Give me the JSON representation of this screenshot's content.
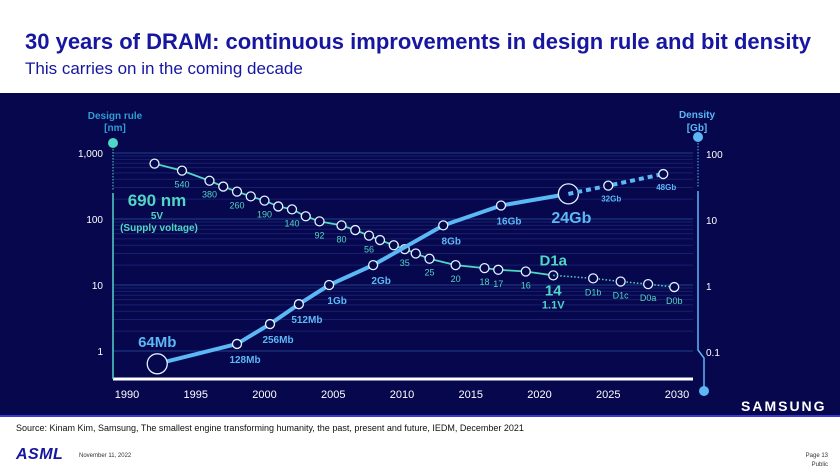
{
  "slide": {
    "title": "30 years of DRAM: continuous improvements in design rule and bit density",
    "subtitle": "This carries on in the coming decade",
    "source": "Source: Kinam Kim, Samsung, The smallest engine transforming humanity, the past, present and future, IEDM, December 2021",
    "logo": "ASML",
    "date": "November 11, 2022",
    "page": "Page 13",
    "classification": "Public",
    "chart_brand": "SAMSUNG"
  },
  "colors": {
    "background": "#07074e",
    "design_rule": "#4fd6c4",
    "density": "#5bb8f5",
    "title": "#1616a0"
  },
  "chart_data": {
    "type": "line",
    "x_ticks": [
      "1990",
      "1995",
      "2000",
      "2005",
      "2010",
      "2015",
      "2020",
      "2025",
      "2030"
    ],
    "xlim": [
      1990,
      2030
    ],
    "grid": true,
    "left_axis": {
      "label_line1": "Design rule",
      "label_line2": "[nm]",
      "scale": "log",
      "ylim": [
        1,
        1000
      ],
      "ticks": [
        "1,000",
        "100",
        "10",
        "1"
      ]
    },
    "right_axis": {
      "label_line1": "Density",
      "label_line2": "[Gb]",
      "scale": "log",
      "ylim": [
        0.1,
        100
      ],
      "ticks": [
        "100",
        "10",
        "1",
        "0.1"
      ]
    },
    "annotations": {
      "first_node": "690 nm",
      "first_voltage": "5V",
      "voltage_caption": "(Supply voltage)",
      "current_node": "D1a",
      "current_voltage": "1.1V"
    },
    "series": [
      {
        "axis": "left",
        "points": [
          {
            "x": 1992,
            "y": 690,
            "label": ""
          },
          {
            "x": 1994,
            "y": 540,
            "label": "540"
          },
          {
            "x": 1996,
            "y": 380,
            "label": "380"
          },
          {
            "x": 1997,
            "y": 310,
            "label": ""
          },
          {
            "x": 1998,
            "y": 260,
            "label": "260"
          },
          {
            "x": 1999,
            "y": 220,
            "label": ""
          },
          {
            "x": 2000,
            "y": 190,
            "label": "190"
          },
          {
            "x": 2001,
            "y": 155,
            "label": ""
          },
          {
            "x": 2002,
            "y": 140,
            "label": "140"
          },
          {
            "x": 2003,
            "y": 110,
            "label": ""
          },
          {
            "x": 2004,
            "y": 92,
            "label": "92"
          },
          {
            "x": 2005.6,
            "y": 80,
            "label": "80"
          },
          {
            "x": 2006.6,
            "y": 68,
            "label": ""
          },
          {
            "x": 2007.6,
            "y": 56,
            "label": "56"
          },
          {
            "x": 2008.4,
            "y": 48,
            "label": ""
          },
          {
            "x": 2009.4,
            "y": 40,
            "label": ""
          },
          {
            "x": 2010.2,
            "y": 35,
            "label": "35"
          },
          {
            "x": 2011,
            "y": 30,
            "label": ""
          },
          {
            "x": 2012,
            "y": 25,
            "label": "25"
          },
          {
            "x": 2013.9,
            "y": 20,
            "label": "20"
          },
          {
            "x": 2016,
            "y": 18,
            "label": "18"
          },
          {
            "x": 2017,
            "y": 17,
            "label": "17"
          },
          {
            "x": 2019,
            "y": 16,
            "label": "16"
          },
          {
            "x": 2021,
            "y": 14,
            "label": "14"
          }
        ]
      },
      {
        "axis": "left",
        "projected": true,
        "points": [
          {
            "x": 2021,
            "y": 14,
            "label": ""
          },
          {
            "x": 2023.9,
            "y": 12.6,
            "label": "D1b"
          },
          {
            "x": 2025.9,
            "y": 11.3,
            "label": "D1c"
          },
          {
            "x": 2027.9,
            "y": 10.3,
            "label": "D0a"
          },
          {
            "x": 2029.8,
            "y": 9.3,
            "label": "D0b"
          }
        ]
      },
      {
        "axis": "right",
        "points": [
          {
            "x": 1992.2,
            "y": 0.064,
            "label": "64Mb"
          },
          {
            "x": 1998,
            "y": 0.128,
            "label": "128Mb"
          },
          {
            "x": 2000.4,
            "y": 0.256,
            "label": "256Mb"
          },
          {
            "x": 2002.5,
            "y": 0.512,
            "label": "512Mb"
          },
          {
            "x": 2004.7,
            "y": 1,
            "label": "1Gb"
          },
          {
            "x": 2007.9,
            "y": 2,
            "label": "2Gb"
          },
          {
            "x": 2013,
            "y": 8,
            "label": "8Gb"
          },
          {
            "x": 2017.2,
            "y": 16,
            "label": "16Gb"
          },
          {
            "x": 2022.1,
            "y": 24,
            "label": "24Gb"
          }
        ]
      },
      {
        "axis": "right",
        "projected": true,
        "points": [
          {
            "x": 2022.1,
            "y": 24,
            "label": ""
          },
          {
            "x": 2025,
            "y": 32,
            "label": "32Gb"
          },
          {
            "x": 2029,
            "y": 48,
            "label": "48Gb"
          }
        ]
      }
    ]
  }
}
